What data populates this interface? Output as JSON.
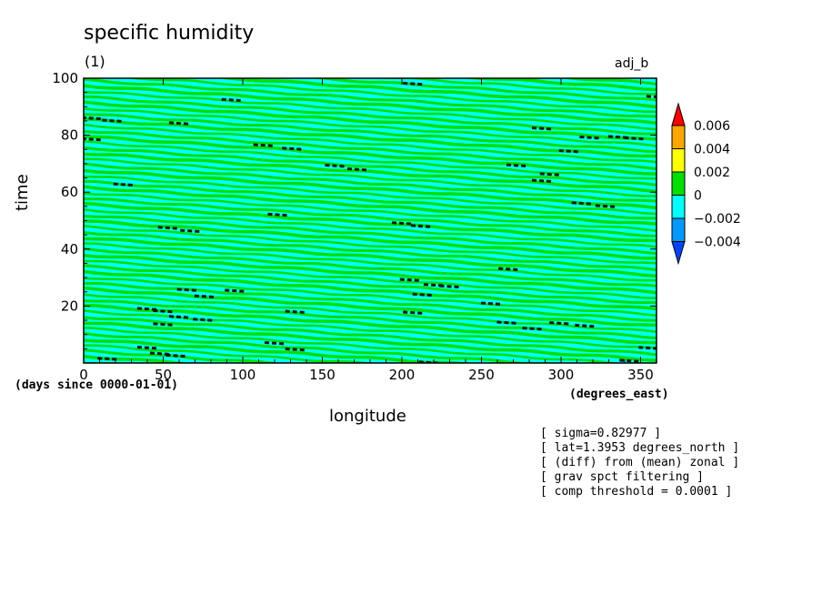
{
  "header": {
    "title": "specific humidity",
    "panel": "(1)",
    "run": "adj_b"
  },
  "colors": {
    "field_cyan": "#00ffff",
    "field_green": "#00e000",
    "pos_orange": "#ffa500",
    "neg_blue": "#0099ff",
    "anomaly_black": "#111111",
    "frame": "#000000"
  },
  "notes": [
    "[ sigma=0.82977 ]",
    "[ lat=1.3953 degrees_north ]",
    "[ (diff) from (mean) zonal ]",
    "[ grav spct filtering ]",
    "[ comp threshold = 0.0001 ]"
  ],
  "chart_data": {
    "type": "heatmap",
    "title": "specific humidity",
    "xlabel": "longitude",
    "ylabel": "time",
    "x_units": "(degrees_east)",
    "time_units": "(days since 0000-01-01)",
    "xlim": [
      0,
      360
    ],
    "ylim": [
      0,
      100
    ],
    "x_ticks": [
      0,
      50,
      100,
      150,
      200,
      250,
      300,
      350
    ],
    "y_ticks": [
      20,
      40,
      60,
      80,
      100
    ],
    "grid": false,
    "colorbar": {
      "placement": "right",
      "levels": [
        -0.004,
        -0.002,
        0,
        0.002,
        0.004,
        0.006
      ],
      "tick_labels": [
        "0.006",
        "0.004",
        "0.002",
        "0",
        "−0.002",
        "−0.004"
      ],
      "colors": [
        "#0044ff",
        "#0099ff",
        "#00ffff",
        "#00e000",
        "#ffff00",
        "#ffa500",
        "#ff0000"
      ]
    },
    "features": [
      {
        "x": 5,
        "y": 86.2
      },
      {
        "x": 18,
        "y": 85.3
      },
      {
        "x": 5,
        "y": 78.8
      },
      {
        "x": 60,
        "y": 84.4
      },
      {
        "x": 93,
        "y": 92.6
      },
      {
        "x": 113,
        "y": 76.7
      },
      {
        "x": 131,
        "y": 75.5
      },
      {
        "x": 158,
        "y": 69.5
      },
      {
        "x": 172,
        "y": 68.2
      },
      {
        "x": 25,
        "y": 62.9
      },
      {
        "x": 53,
        "y": 47.7
      },
      {
        "x": 67,
        "y": 46.6
      },
      {
        "x": 122,
        "y": 52.3
      },
      {
        "x": 200,
        "y": 49.3
      },
      {
        "x": 212,
        "y": 48.3
      },
      {
        "x": 207,
        "y": 98.3
      },
      {
        "x": 288,
        "y": 82.6
      },
      {
        "x": 305,
        "y": 74.6
      },
      {
        "x": 318,
        "y": 79.4
      },
      {
        "x": 336,
        "y": 79.6
      },
      {
        "x": 346,
        "y": 79.1
      },
      {
        "x": 272,
        "y": 69.6
      },
      {
        "x": 293,
        "y": 66.5
      },
      {
        "x": 288,
        "y": 64.2
      },
      {
        "x": 313,
        "y": 56.3
      },
      {
        "x": 328,
        "y": 55.3
      },
      {
        "x": 267,
        "y": 33.2
      },
      {
        "x": 360,
        "y": 93.7
      },
      {
        "x": 65,
        "y": 25.9
      },
      {
        "x": 76,
        "y": 23.6
      },
      {
        "x": 50,
        "y": 18.4
      },
      {
        "x": 60,
        "y": 16.4
      },
      {
        "x": 40,
        "y": 19.2
      },
      {
        "x": 75,
        "y": 15.4
      },
      {
        "x": 50,
        "y": 13.8
      },
      {
        "x": 95,
        "y": 25.6
      },
      {
        "x": 133,
        "y": 18.2
      },
      {
        "x": 205,
        "y": 29.4
      },
      {
        "x": 220,
        "y": 27.6
      },
      {
        "x": 213,
        "y": 24.2
      },
      {
        "x": 230,
        "y": 27.1
      },
      {
        "x": 207,
        "y": 17.9
      },
      {
        "x": 256,
        "y": 21.1
      },
      {
        "x": 266,
        "y": 14.4
      },
      {
        "x": 282,
        "y": 12.3
      },
      {
        "x": 299,
        "y": 14.2
      },
      {
        "x": 315,
        "y": 13.3
      },
      {
        "x": 40,
        "y": 5.6
      },
      {
        "x": 48,
        "y": 3.5
      },
      {
        "x": 58,
        "y": 2.8
      },
      {
        "x": 15,
        "y": 1.7
      },
      {
        "x": 120,
        "y": 7.2
      },
      {
        "x": 133,
        "y": 5.0
      },
      {
        "x": 343,
        "y": 1.0
      },
      {
        "x": 355,
        "y": 5.5
      },
      {
        "x": 217,
        "y": 0.4
      }
    ]
  }
}
